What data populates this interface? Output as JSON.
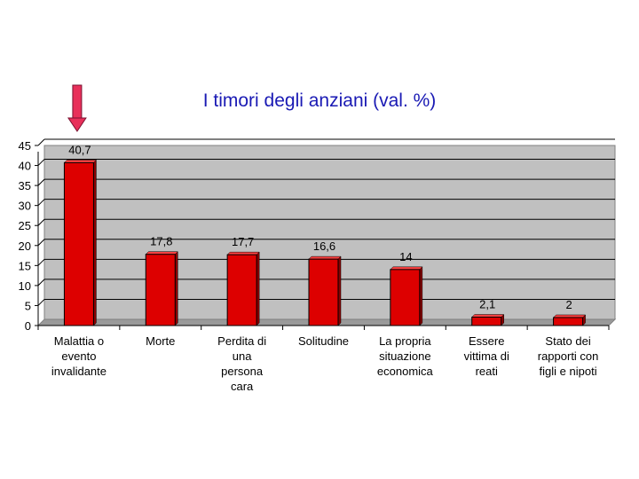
{
  "chart_data": {
    "type": "bar",
    "title": "I timori degli anziani (val. %)",
    "categories": [
      [
        "Malattia o",
        "evento",
        "invalidante"
      ],
      [
        "Morte"
      ],
      [
        "Perdita di",
        "una",
        "persona",
        "cara"
      ],
      [
        "Solitudine"
      ],
      [
        "La propria",
        "situazione",
        "economica"
      ],
      [
        "Essere",
        "vittima di",
        "reati"
      ],
      [
        "Stato dei",
        "rapporti con",
        "figli e nipoti"
      ]
    ],
    "values": [
      40.7,
      17.8,
      17.7,
      16.6,
      14,
      2.1,
      2
    ],
    "data_labels": [
      "40,7",
      "17,8",
      "17,7",
      "16,6",
      "14",
      "2,1",
      "2"
    ],
    "yticks": [
      0,
      5,
      10,
      15,
      20,
      25,
      30,
      35,
      40,
      45
    ],
    "ylim": [
      0,
      45
    ],
    "xlabel": "",
    "ylabel": "",
    "grid": true,
    "bar_color": "#dd0000",
    "plot_background": "#c0c0c0",
    "title_color": "#1a1ab4",
    "highlight_marker": "arrow-down-icon",
    "highlight_color": "#e8305a"
  }
}
